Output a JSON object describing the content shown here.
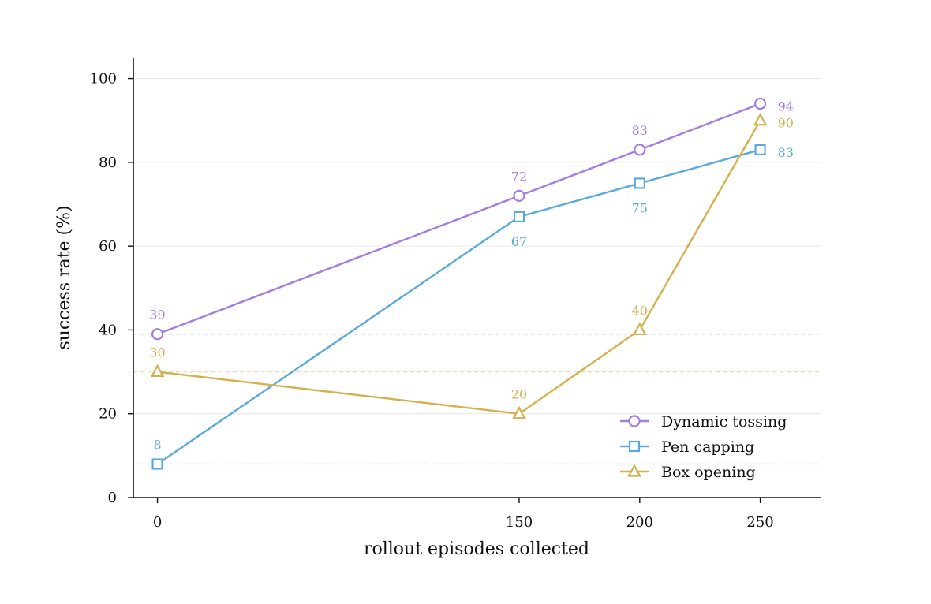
{
  "chart_data": {
    "type": "line",
    "xlabel": "rollout episodes collected",
    "ylabel": "success rate (%)",
    "x": [
      0,
      150,
      200,
      250
    ],
    "x_ticks": [
      0,
      150,
      200,
      250
    ],
    "xlim": [
      -10,
      275
    ],
    "y_ticks": [
      0,
      20,
      40,
      60,
      80,
      100
    ],
    "ylim": [
      0,
      105
    ],
    "grid": "horizontal",
    "legend_position": "lower-right",
    "series": [
      {
        "name": "Dynamic tossing",
        "color": "#a47de3",
        "marker": "circle",
        "values": [
          39,
          72,
          83,
          94
        ],
        "labels": [
          "39",
          "72",
          "83",
          "94"
        ],
        "label_pos": [
          "above",
          "above",
          "above",
          "right"
        ],
        "baseline": 39
      },
      {
        "name": "Pen capping",
        "color": "#5aa9e0",
        "marker": "square",
        "values": [
          8,
          67,
          75,
          83
        ],
        "labels": [
          "8",
          "67",
          "75",
          "83"
        ],
        "label_pos": [
          "above",
          "below",
          "below",
          "right"
        ],
        "baseline": 8
      },
      {
        "name": "Box opening",
        "color": "#d5b04e",
        "marker": "triangle",
        "values": [
          30,
          20,
          40,
          90
        ],
        "labels": [
          "30",
          "20",
          "40",
          "90"
        ],
        "label_pos": [
          "above",
          "above",
          "above",
          "right"
        ],
        "baseline": 30
      }
    ]
  }
}
